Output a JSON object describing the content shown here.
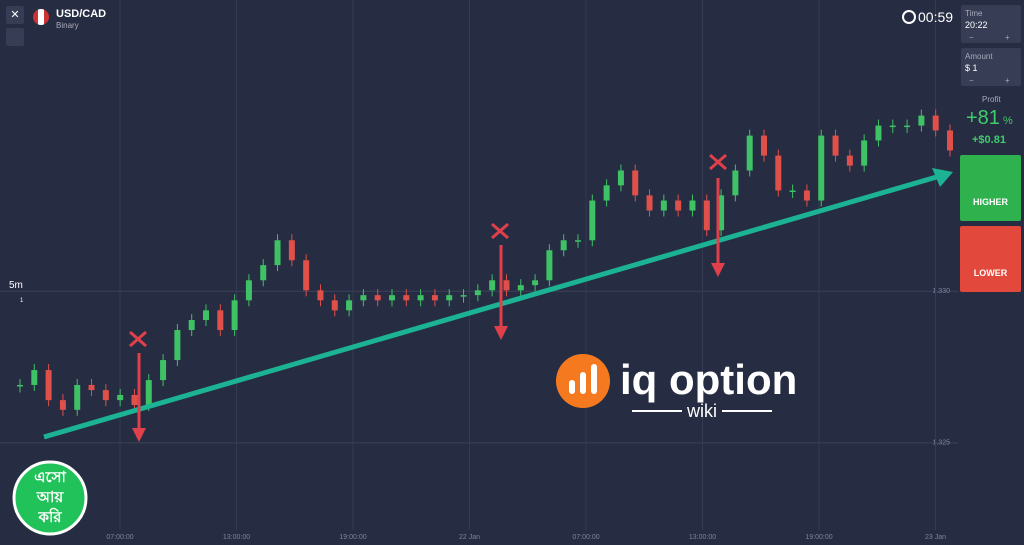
{
  "header": {
    "symbol": "USD/CAD",
    "kind": "Binary",
    "timer": "00:59"
  },
  "left_tools": {
    "timeframe": "5m",
    "badge": "1"
  },
  "time_box": {
    "label": "Time",
    "value": "20:22",
    "plus": "+",
    "minus": "−"
  },
  "amount_box": {
    "label": "Amount",
    "value": "$ 1",
    "plus": "+",
    "minus": "−"
  },
  "profit": {
    "label": "Profit",
    "percent": "+81",
    "percent_sign": "%",
    "amount": "+$0.81"
  },
  "buttons": {
    "higher": "HIGHER",
    "lower": "LOWER"
  },
  "price_axis": {
    "ylim": [
      1.3217,
      1.3396
    ],
    "yticks": [
      {
        "value": 1.33,
        "label": "1.330"
      },
      {
        "value": 1.325,
        "label": "1.325"
      }
    ]
  },
  "time_axis": {
    "ticks": [
      "07:00:00",
      "13:00:00",
      "19:00:00",
      "22 Jan",
      "07:00:00",
      "13:00:00",
      "19:00:00",
      "23 Jan"
    ]
  },
  "prices": [
    1.32691,
    1.3274,
    1.32641,
    1.32609,
    1.32691,
    1.32674,
    1.32641,
    1.32658,
    1.32625,
    1.32707,
    1.32773,
    1.32872,
    1.32905,
    1.32937,
    1.32872,
    1.3297,
    1.33036,
    1.33086,
    1.33168,
    1.33102,
    1.33003,
    1.3297,
    1.32937,
    1.3297,
    1.32987,
    1.3297,
    1.32987,
    1.3297,
    1.32987,
    1.3297,
    1.32987,
    1.32987,
    1.33003,
    1.33036,
    1.33003,
    1.3302,
    1.33036,
    1.33135,
    1.33168,
    1.33168,
    1.33299,
    1.33349,
    1.33398,
    1.33316,
    1.33266,
    1.33299,
    1.33266,
    1.33299,
    1.33201,
    1.33316,
    1.33398,
    1.33513,
    1.33447,
    1.33332,
    1.33332,
    1.33299,
    1.33513,
    1.33447,
    1.33414,
    1.33497,
    1.33546,
    1.33546,
    1.33546,
    1.33579,
    1.3353,
    1.33464
  ],
  "watermark": {
    "brand": "iq option",
    "sub": "wiki"
  },
  "badge": {
    "line1": "এসো",
    "line2": "আয়",
    "line3": "করি"
  }
}
